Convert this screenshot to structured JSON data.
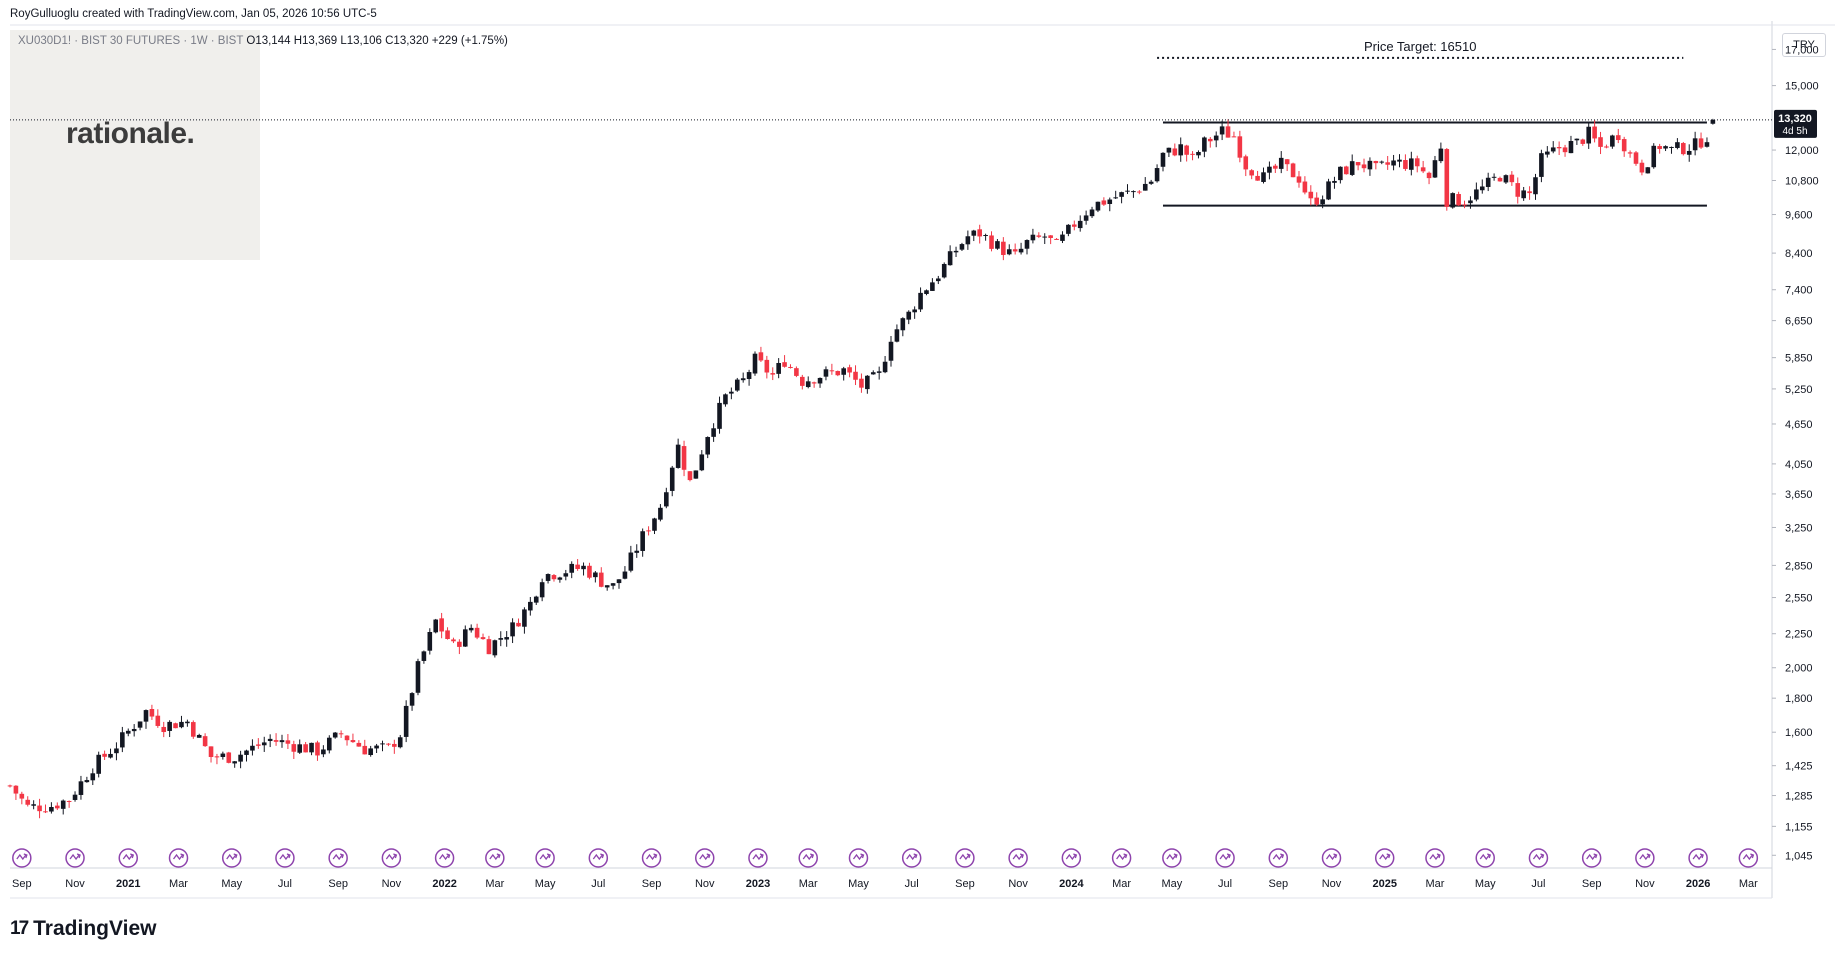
{
  "header": {
    "credit": "RoyGulluoglu created with TradingView.com, Jan 05, 2026 10:56 UTC-5",
    "symbol": "XU030D1! · BIST 30 FUTURES · 1W · BIST",
    "ohlc": "O13,144 H13,369 L13,106 C13,320 +229 (+1.75%)"
  },
  "logo": {
    "text": "rationale."
  },
  "currency_button": "TRY",
  "last_price": {
    "value": "13,320",
    "countdown": "4d 5h",
    "color": "#131722"
  },
  "brand": {
    "name": "TradingView",
    "mark": "17"
  },
  "colors": {
    "up": "#131722",
    "down": "#f23645",
    "grid": "#f0f3fa",
    "event_icon": "#8e44ad"
  },
  "chart_data": {
    "type": "candlestick",
    "title": "",
    "y_scale": "log",
    "ylim": [
      1000,
      18500
    ],
    "y_ticks": [
      {
        "value": 1045,
        "label": "1,045"
      },
      {
        "value": 1155,
        "label": "1,155"
      },
      {
        "value": 1285,
        "label": "1,285"
      },
      {
        "value": 1425,
        "label": "1,425"
      },
      {
        "value": 1600,
        "label": "1,600"
      },
      {
        "value": 1800,
        "label": "1,800"
      },
      {
        "value": 2000,
        "label": "2,000"
      },
      {
        "value": 2250,
        "label": "2,250"
      },
      {
        "value": 2550,
        "label": "2,550"
      },
      {
        "value": 2850,
        "label": "2,850"
      },
      {
        "value": 3250,
        "label": "3,250"
      },
      {
        "value": 3650,
        "label": "3,650"
      },
      {
        "value": 4050,
        "label": "4,050"
      },
      {
        "value": 4650,
        "label": "4,650"
      },
      {
        "value": 5250,
        "label": "5,250"
      },
      {
        "value": 5850,
        "label": "5,850"
      },
      {
        "value": 6650,
        "label": "6,650"
      },
      {
        "value": 7400,
        "label": "7,400"
      },
      {
        "value": 8400,
        "label": "8,400"
      },
      {
        "value": 9600,
        "label": "9,600"
      },
      {
        "value": 10800,
        "label": "10,800"
      },
      {
        "value": 12000,
        "label": "12,000"
      },
      {
        "value": 15000,
        "label": "15,000"
      },
      {
        "value": 17000,
        "label": "17,000"
      }
    ],
    "x_ticks": [
      {
        "label": "Sep",
        "week": 2.0,
        "bold": false
      },
      {
        "label": "Nov",
        "week": 11.0,
        "bold": false
      },
      {
        "label": "2021",
        "week": 20.0,
        "bold": true
      },
      {
        "label": "Mar",
        "week": 28.5,
        "bold": false
      },
      {
        "label": "May",
        "week": 37.5,
        "bold": false
      },
      {
        "label": "Jul",
        "week": 46.5,
        "bold": false
      },
      {
        "label": "Sep",
        "week": 55.5,
        "bold": false
      },
      {
        "label": "Nov",
        "week": 64.5,
        "bold": false
      },
      {
        "label": "2022",
        "week": 73.5,
        "bold": true
      },
      {
        "label": "Mar",
        "week": 82.0,
        "bold": false
      },
      {
        "label": "May",
        "week": 90.5,
        "bold": false
      },
      {
        "label": "Jul",
        "week": 99.5,
        "bold": false
      },
      {
        "label": "Sep",
        "week": 108.5,
        "bold": false
      },
      {
        "label": "Nov",
        "week": 117.5,
        "bold": false
      },
      {
        "label": "2023",
        "week": 126.5,
        "bold": true
      },
      {
        "label": "Mar",
        "week": 135.0,
        "bold": false
      },
      {
        "label": "May",
        "week": 143.5,
        "bold": false
      },
      {
        "label": "Jul",
        "week": 152.5,
        "bold": false
      },
      {
        "label": "Sep",
        "week": 161.5,
        "bold": false
      },
      {
        "label": "Nov",
        "week": 170.5,
        "bold": false
      },
      {
        "label": "2024",
        "week": 179.5,
        "bold": true
      },
      {
        "label": "Mar",
        "week": 188.0,
        "bold": false
      },
      {
        "label": "May",
        "week": 196.5,
        "bold": false
      },
      {
        "label": "Jul",
        "week": 205.5,
        "bold": false
      },
      {
        "label": "Sep",
        "week": 214.5,
        "bold": false
      },
      {
        "label": "Nov",
        "week": 223.5,
        "bold": false
      },
      {
        "label": "2025",
        "week": 232.5,
        "bold": true
      },
      {
        "label": "Mar",
        "week": 241.0,
        "bold": false
      },
      {
        "label": "May",
        "week": 249.5,
        "bold": false
      },
      {
        "label": "Jul",
        "week": 258.5,
        "bold": false
      },
      {
        "label": "Sep",
        "week": 267.5,
        "bold": false
      },
      {
        "label": "Nov",
        "week": 276.5,
        "bold": false
      },
      {
        "label": "2026",
        "week": 285.5,
        "bold": true
      },
      {
        "label": "Mar",
        "week": 294.0,
        "bold": false
      }
    ],
    "week_range": [
      0,
      298
    ],
    "price_path": [
      [
        0,
        1330
      ],
      [
        3,
        1235
      ],
      [
        7,
        1240
      ],
      [
        10,
        1270
      ],
      [
        14,
        1420
      ],
      [
        18,
        1530
      ],
      [
        23,
        1720
      ],
      [
        26,
        1640
      ],
      [
        30,
        1660
      ],
      [
        34,
        1470
      ],
      [
        38,
        1470
      ],
      [
        44,
        1560
      ],
      [
        52,
        1500
      ],
      [
        56,
        1590
      ],
      [
        60,
        1510
      ],
      [
        64,
        1510
      ],
      [
        66,
        1590
      ],
      [
        69,
        2000
      ],
      [
        72,
        2350
      ],
      [
        75,
        2150
      ],
      [
        78,
        2300
      ],
      [
        81,
        2150
      ],
      [
        85,
        2300
      ],
      [
        88,
        2500
      ],
      [
        90,
        2750
      ],
      [
        94,
        2800
      ],
      [
        97,
        2830
      ],
      [
        100,
        2700
      ],
      [
        102,
        2650
      ],
      [
        104,
        2800
      ],
      [
        107,
        3150
      ],
      [
        110,
        3500
      ],
      [
        112,
        4050
      ],
      [
        113,
        4300
      ],
      [
        115,
        3800
      ],
      [
        116,
        4000
      ],
      [
        118,
        4500
      ],
      [
        121,
        5100
      ],
      [
        124,
        5400
      ],
      [
        126,
        5800
      ],
      [
        128,
        5600
      ],
      [
        129,
        5500
      ],
      [
        131,
        5800
      ],
      [
        134,
        5400
      ],
      [
        137,
        5500
      ],
      [
        141,
        5600
      ],
      [
        144,
        5300
      ],
      [
        147,
        5500
      ],
      [
        149,
        6300
      ],
      [
        152,
        6800
      ],
      [
        154,
        7300
      ],
      [
        157,
        7800
      ],
      [
        160,
        8500
      ],
      [
        162,
        8900
      ],
      [
        164,
        9000
      ],
      [
        167,
        8600
      ],
      [
        170,
        8300
      ],
      [
        172,
        8700
      ],
      [
        175,
        8900
      ],
      [
        177,
        8600
      ],
      [
        180,
        9300
      ],
      [
        183,
        9900
      ],
      [
        187,
        10200
      ],
      [
        190,
        10400
      ],
      [
        193,
        10800
      ],
      [
        195,
        11800
      ],
      [
        198,
        12100
      ],
      [
        200,
        11600
      ],
      [
        202,
        12300
      ],
      [
        205,
        12800
      ],
      [
        207,
        12600
      ],
      [
        209,
        11400
      ],
      [
        212,
        10900
      ],
      [
        215,
        11400
      ],
      [
        218,
        10900
      ],
      [
        220,
        10000
      ],
      [
        222,
        10300
      ],
      [
        225,
        11100
      ],
      [
        228,
        11500
      ],
      [
        231,
        11200
      ],
      [
        234,
        11500
      ],
      [
        238,
        11400
      ],
      [
        240,
        10900
      ],
      [
        242,
        12200
      ],
      [
        243,
        10100
      ],
      [
        246,
        10100
      ],
      [
        249,
        10500
      ],
      [
        252,
        11000
      ],
      [
        255,
        10400
      ],
      [
        257,
        10300
      ],
      [
        259,
        11600
      ],
      [
        262,
        12100
      ],
      [
        265,
        12300
      ],
      [
        267,
        12700
      ],
      [
        269,
        12100
      ],
      [
        272,
        12700
      ],
      [
        274,
        11800
      ],
      [
        276,
        11300
      ],
      [
        279,
        12200
      ],
      [
        281,
        12000
      ],
      [
        285,
        12200
      ],
      [
        287,
        12600
      ],
      [
        288,
        13320
      ]
    ],
    "annotations": [
      {
        "type": "hline_dotted",
        "label": "Price Target: 16510",
        "value": 16510,
        "from_week": 194,
        "to_week": 283
      },
      {
        "type": "hline",
        "label": "",
        "value": 13200,
        "from_week": 195,
        "to_week": 287
      },
      {
        "type": "hline",
        "label": "",
        "value": 9900,
        "from_week": 195,
        "to_week": 287
      }
    ],
    "event_weeks": [
      2,
      11,
      20,
      28.5,
      37.5,
      46.5,
      55.5,
      64.5,
      73.5,
      82,
      90.5,
      99.5,
      108.5,
      117.5,
      126.5,
      135,
      143.5,
      152.5,
      161.5,
      170.5,
      179.5,
      188,
      196.5,
      205.5,
      214.5,
      223.5,
      232.5,
      241,
      249.5,
      258.5,
      267.5,
      276.5,
      285.5,
      294
    ]
  }
}
